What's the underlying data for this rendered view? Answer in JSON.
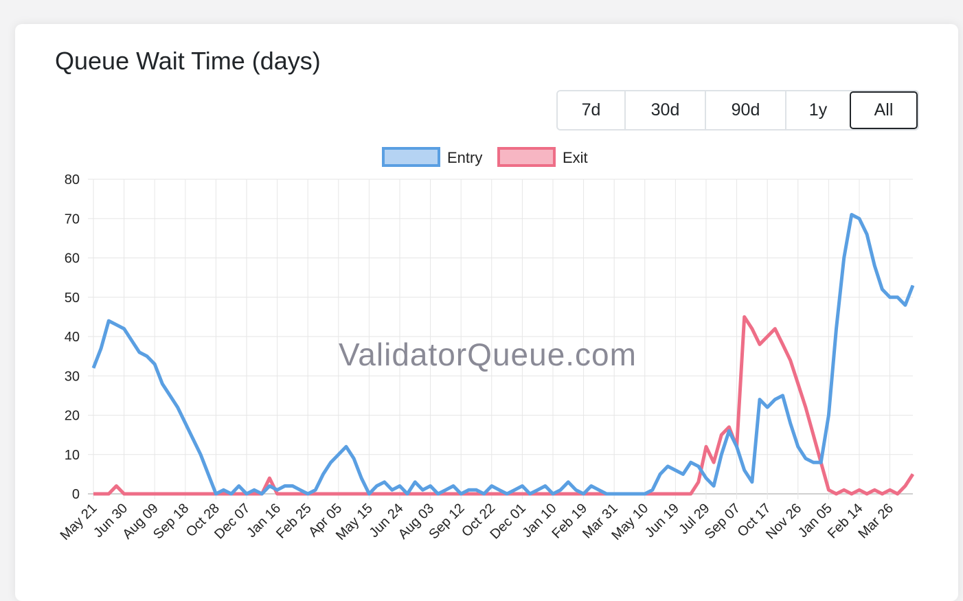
{
  "title": "Queue Wait Time (days)",
  "range_buttons": [
    {
      "label": "7d",
      "active": false
    },
    {
      "label": "30d",
      "active": false
    },
    {
      "label": "90d",
      "active": false
    },
    {
      "label": "1y",
      "active": false
    },
    {
      "label": "All",
      "active": true
    }
  ],
  "watermark": "ValidatorQueue.com",
  "chart_data": {
    "type": "line",
    "title": "Queue Wait Time (days)",
    "xlabel": "",
    "ylabel": "",
    "ylim": [
      0,
      80
    ],
    "yticks": [
      0,
      10,
      20,
      30,
      40,
      50,
      60,
      70,
      80
    ],
    "grid": true,
    "legend_position": "top-center",
    "x_step_days": 10,
    "x_tick_every_days": 40,
    "xtick_labels": [
      "May 21",
      "Jun 30",
      "Aug 09",
      "Sep 18",
      "Oct 28",
      "Dec 07",
      "Jan 16",
      "Feb 25",
      "Apr 05",
      "May 15",
      "Jun 24",
      "Aug 03",
      "Sep 12",
      "Oct 22",
      "Dec 01",
      "Jan 10",
      "Feb 19",
      "Mar 31",
      "May 10",
      "Jun 19",
      "Jul 29",
      "Sep 07",
      "Oct 17",
      "Nov 26",
      "Jan 05",
      "Feb 14",
      "Mar 26"
    ],
    "series": [
      {
        "name": "Entry",
        "color": "#5a9fe2",
        "fill": "#b5d3f3",
        "values": [
          32,
          37,
          44,
          43,
          42,
          39,
          36,
          35,
          33,
          28,
          25,
          22,
          18,
          14,
          10,
          5,
          0,
          1,
          0,
          2,
          0,
          1,
          0,
          2,
          1,
          2,
          2,
          1,
          0,
          1,
          5,
          8,
          10,
          12,
          9,
          4,
          0,
          2,
          3,
          1,
          2,
          0,
          3,
          1,
          2,
          0,
          1,
          2,
          0,
          1,
          1,
          0,
          2,
          1,
          0,
          1,
          2,
          0,
          1,
          2,
          0,
          1,
          3,
          1,
          0,
          2,
          1,
          0,
          0,
          0,
          0,
          0,
          0,
          1,
          5,
          7,
          6,
          5,
          8,
          7,
          4,
          2,
          10,
          16,
          12,
          6,
          3,
          24,
          22,
          24,
          25,
          18,
          12,
          9,
          8,
          8,
          20,
          42,
          60,
          71,
          70,
          66,
          58,
          52,
          50,
          50,
          48,
          53
        ]
      },
      {
        "name": "Exit",
        "color": "#ee6e87",
        "fill": "#f7b6c3",
        "values": [
          0,
          0,
          0,
          2,
          0,
          0,
          0,
          0,
          0,
          0,
          0,
          0,
          0,
          0,
          0,
          0,
          0,
          0,
          0,
          0,
          0,
          0,
          0,
          4,
          0,
          0,
          0,
          0,
          0,
          0,
          0,
          0,
          0,
          0,
          0,
          0,
          0,
          0,
          0,
          0,
          0,
          0,
          0,
          0,
          0,
          0,
          0,
          0,
          0,
          0,
          0,
          0,
          0,
          0,
          0,
          0,
          0,
          0,
          0,
          0,
          0,
          0,
          0,
          0,
          0,
          0,
          0,
          0,
          0,
          0,
          0,
          0,
          0,
          0,
          0,
          0,
          0,
          0,
          0,
          3,
          12,
          8,
          15,
          17,
          12,
          45,
          42,
          38,
          40,
          42,
          38,
          34,
          28,
          22,
          15,
          8,
          1,
          0,
          1,
          0,
          1,
          0,
          1,
          0,
          1,
          0,
          2,
          5
        ]
      }
    ]
  }
}
